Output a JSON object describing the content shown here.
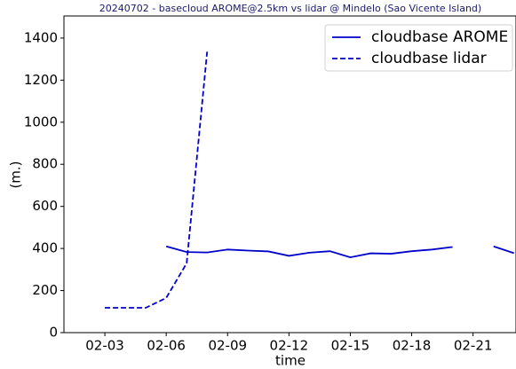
{
  "chart_data": {
    "type": "line",
    "title": "20240702 - basecloud AROME@2.5km vs lidar @ Mindelo (Sao Vicente Island)",
    "xlabel": "time",
    "ylabel": "(m.)",
    "xlim": [
      1,
      23.1
    ],
    "ylim": [
      0,
      1505
    ],
    "xticks": [
      {
        "value": 3,
        "label": "02-03"
      },
      {
        "value": 6,
        "label": "02-06"
      },
      {
        "value": 9,
        "label": "02-09"
      },
      {
        "value": 12,
        "label": "02-12"
      },
      {
        "value": 15,
        "label": "02-15"
      },
      {
        "value": 18,
        "label": "02-18"
      },
      {
        "value": 21,
        "label": "02-21"
      }
    ],
    "yticks": [
      0,
      200,
      400,
      600,
      800,
      1000,
      1200,
      1400
    ],
    "legend": "upper right",
    "series": [
      {
        "name": "cloudbase AROME",
        "color": "#0000cc",
        "linestyle": "solid",
        "x": [
          6,
          7,
          8,
          9,
          10,
          11,
          12,
          13,
          14,
          15,
          16,
          17,
          18,
          19,
          20,
          21,
          22,
          23
        ],
        "values": [
          410,
          383,
          381,
          395,
          390,
          386,
          365,
          380,
          387,
          358,
          377,
          375,
          387,
          395,
          407,
          null,
          410,
          378
        ]
      },
      {
        "name": "cloudbase lidar",
        "color": "#0000cc",
        "linestyle": "dashed",
        "x": [
          3,
          4,
          5,
          6,
          7,
          8
        ],
        "values": [
          118,
          118,
          118,
          165,
          330,
          1335
        ]
      }
    ]
  }
}
